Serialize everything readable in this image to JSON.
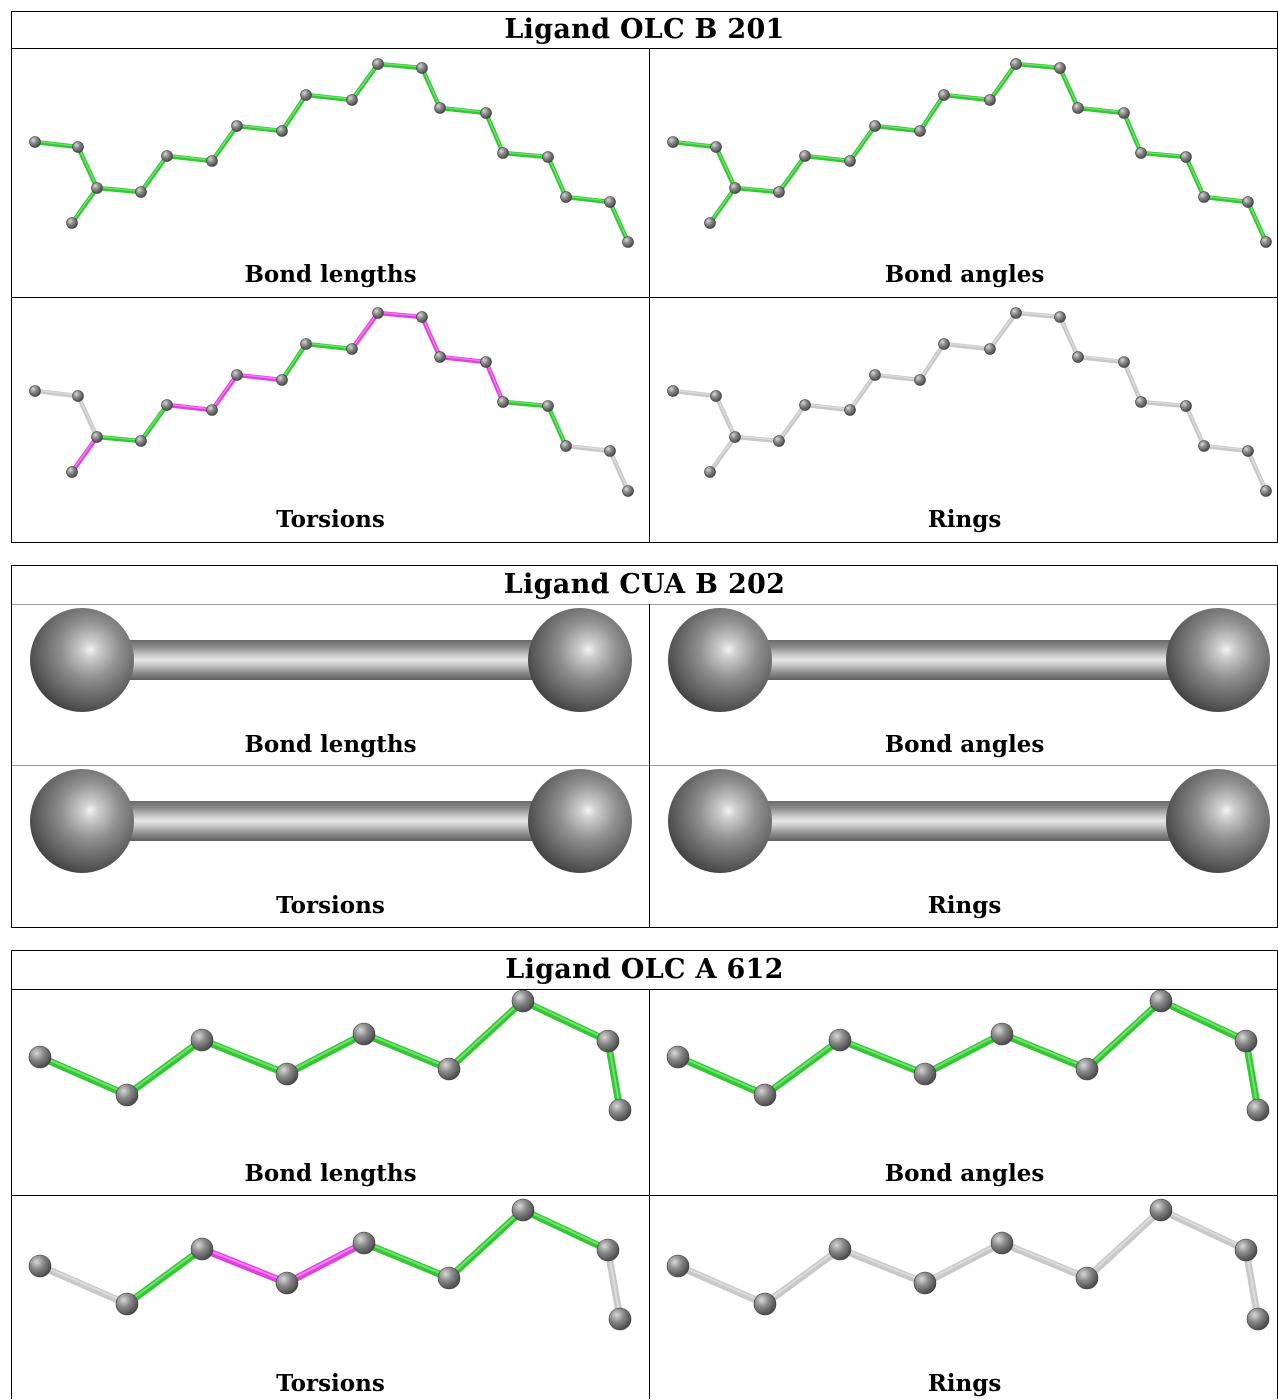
{
  "colors": {
    "green": "#2fca2f",
    "magenta": "#e23fe2",
    "grey_bond": "#c8c8c8",
    "atom": "#6e6e6e"
  },
  "icons": [
    "ball-and-stick-molecule",
    "dumbbell-molecule"
  ],
  "panels": [
    {
      "title": "Ligand OLC B 201",
      "cells": [
        {
          "caption": "Bond lengths",
          "bond_colors": [
            "green",
            "green",
            "green",
            "green",
            "green",
            "green",
            "green",
            "green",
            "green",
            "green",
            "green",
            "green",
            "green",
            "green",
            "green",
            "green",
            "green",
            "green"
          ]
        },
        {
          "caption": "Bond angles",
          "bond_colors": [
            "green",
            "green",
            "green",
            "green",
            "green",
            "green",
            "green",
            "green",
            "green",
            "green",
            "green",
            "green",
            "green",
            "green",
            "green",
            "green",
            "green",
            "green"
          ]
        },
        {
          "caption": "Torsions",
          "bond_colors": [
            "grey",
            "grey",
            "magenta",
            "green",
            "green",
            "magenta",
            "magenta",
            "magenta",
            "green",
            "green",
            "magenta",
            "magenta",
            "magenta",
            "magenta",
            "magenta",
            "green",
            "green",
            "grey"
          ]
        },
        {
          "caption": "Rings",
          "bond_colors": [
            "grey",
            "grey",
            "grey",
            "grey",
            "grey",
            "grey",
            "grey",
            "grey",
            "grey",
            "grey",
            "grey",
            "grey",
            "grey",
            "grey",
            "grey",
            "grey",
            "grey",
            "grey"
          ]
        }
      ]
    },
    {
      "title": "Ligand CUA B 202",
      "cells": [
        {
          "caption": "Bond lengths"
        },
        {
          "caption": "Bond angles"
        },
        {
          "caption": "Torsions"
        },
        {
          "caption": "Rings"
        }
      ]
    },
    {
      "title": "Ligand OLC A 612",
      "cells": [
        {
          "caption": "Bond lengths",
          "bond_colors": [
            "green",
            "green",
            "green",
            "green",
            "green",
            "green",
            "green",
            "green"
          ]
        },
        {
          "caption": "Bond angles",
          "bond_colors": [
            "green",
            "green",
            "green",
            "green",
            "green",
            "green",
            "green",
            "green"
          ]
        },
        {
          "caption": "Torsions",
          "bond_colors": [
            "grey",
            "green",
            "magenta",
            "magenta",
            "green",
            "green",
            "green",
            "grey"
          ]
        },
        {
          "caption": "Rings",
          "bond_colors": [
            "grey",
            "grey",
            "grey",
            "grey",
            "grey",
            "grey",
            "grey",
            "grey"
          ]
        }
      ]
    }
  ]
}
